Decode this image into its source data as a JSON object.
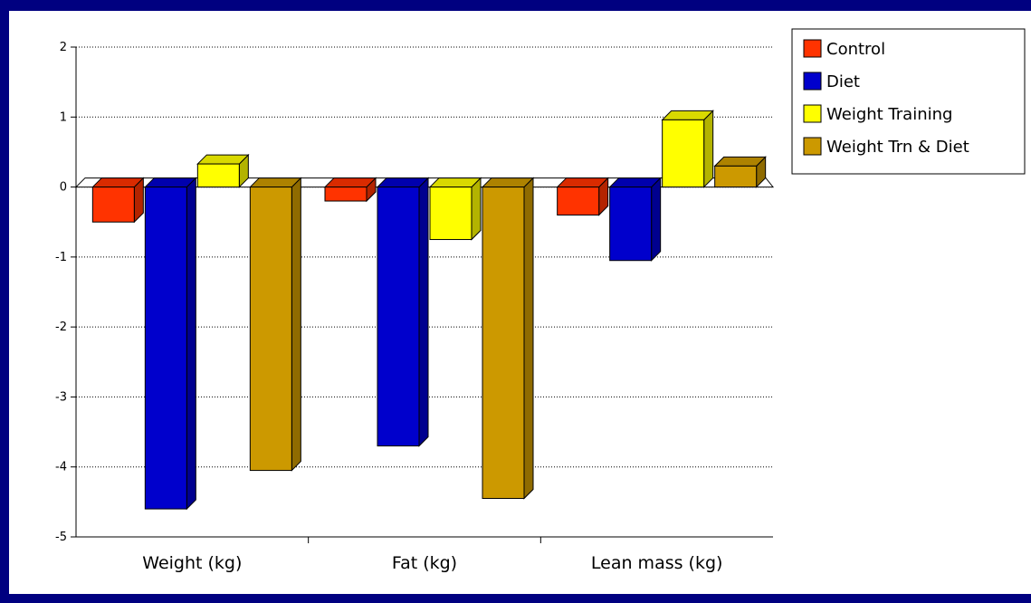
{
  "chart_data": {
    "type": "bar",
    "style": "3d-clustered-column",
    "categories": [
      "Weight (kg)",
      "Fat (kg)",
      "Lean mass (kg)"
    ],
    "series": [
      {
        "name": "Control",
        "color": "#ff3300",
        "values": [
          -0.5,
          -0.2,
          -0.4
        ]
      },
      {
        "name": "Diet",
        "color": "#0000cc",
        "values": [
          -4.6,
          -3.7,
          -1.05
        ]
      },
      {
        "name": "Weight Training",
        "color": "#ffff00",
        "values": [
          0.33,
          -0.75,
          0.96
        ]
      },
      {
        "name": "Weight Trn & Diet",
        "color": "#cc9900",
        "values": [
          -4.05,
          -4.45,
          0.3
        ]
      }
    ],
    "yticks": [
      "2",
      "1",
      "0",
      "-1",
      "-2",
      "-3",
      "-4",
      "-5"
    ],
    "ylim": [
      -5,
      2
    ],
    "grid": true,
    "legend_position": "top-right"
  },
  "colors": {
    "background": "#000080",
    "plot_background": "#ffffff"
  }
}
